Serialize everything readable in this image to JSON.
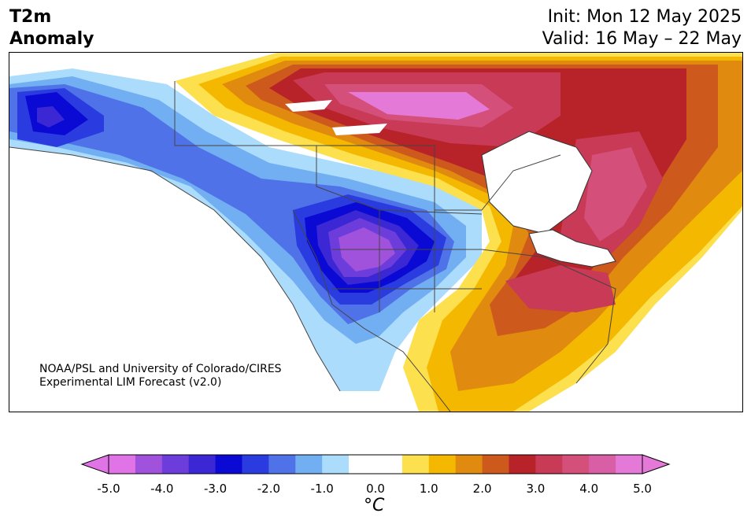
{
  "header": {
    "title_line1": "T2m",
    "title_line2": "Anomaly",
    "init": "Init: Mon 12 May 2025",
    "valid": "Valid: 16 May – 22 May"
  },
  "credit": {
    "line1": "NOAA/PSL and University of Colorado/CIRES",
    "line2": "Experimental LIM Forecast (v2.0)"
  },
  "colorbar": {
    "unit": "°C",
    "tick_labels": [
      "-5.0",
      "-4.0",
      "-3.0",
      "-2.0",
      "-1.0",
      "0.0",
      "1.0",
      "2.0",
      "3.0",
      "4.0",
      "5.0"
    ],
    "levels_colors": [
      "#e073e6",
      "#a052dd",
      "#6c3ddb",
      "#3c27d4",
      "#0a0ad4",
      "#2a3ce0",
      "#4f72e8",
      "#72aef2",
      "#acdcfb",
      "#ffffff",
      "#ffffff",
      "#fde04e",
      "#f5b800",
      "#e08a10",
      "#cd5a1c",
      "#b8232a",
      "#c83a55",
      "#d44f7a",
      "#d85fa5",
      "#e579d8"
    ],
    "extend_low_color": "#e073e6",
    "extend_high_color": "#e579d8"
  }
}
